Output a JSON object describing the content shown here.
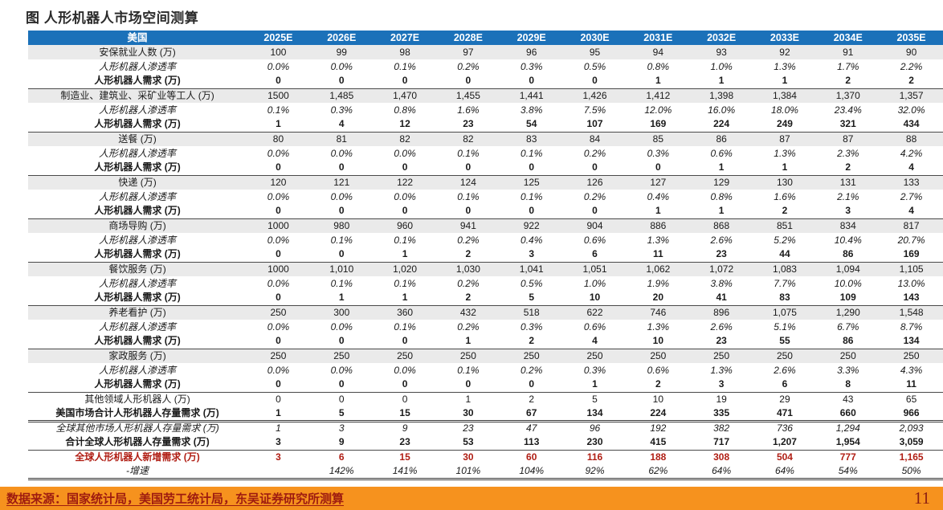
{
  "title": "图  人形机器人市场空间测算",
  "table": {
    "label_header": "美国",
    "years": [
      "2025E",
      "2026E",
      "2027E",
      "2028E",
      "2029E",
      "2030E",
      "2031E",
      "2032E",
      "2033E",
      "2034E",
      "2035E"
    ],
    "rows": [
      {
        "label": "安保就业人数 (万)",
        "style": "sector",
        "values": [
          "100",
          "99",
          "98",
          "97",
          "96",
          "95",
          "94",
          "93",
          "92",
          "91",
          "90"
        ]
      },
      {
        "label": "人形机器人渗透率",
        "style": "pen",
        "values": [
          "0.0%",
          "0.0%",
          "0.1%",
          "0.2%",
          "0.3%",
          "0.5%",
          "0.8%",
          "1.0%",
          "1.3%",
          "1.7%",
          "2.2%"
        ]
      },
      {
        "label": "人形机器人需求 (万)",
        "style": "demand",
        "values": [
          "0",
          "0",
          "0",
          "0",
          "0",
          "0",
          "1",
          "1",
          "1",
          "2",
          "2"
        ]
      },
      {
        "label": "制造业、建筑业、采矿业等工人 (万)",
        "style": "sector",
        "values": [
          "1500",
          "1,485",
          "1,470",
          "1,455",
          "1,441",
          "1,426",
          "1,412",
          "1,398",
          "1,384",
          "1,370",
          "1,357"
        ]
      },
      {
        "label": "人形机器人渗透率",
        "style": "pen",
        "values": [
          "0.1%",
          "0.3%",
          "0.8%",
          "1.6%",
          "3.8%",
          "7.5%",
          "12.0%",
          "16.0%",
          "18.0%",
          "23.4%",
          "32.0%"
        ]
      },
      {
        "label": "人形机器人需求 (万)",
        "style": "demand",
        "values": [
          "1",
          "4",
          "12",
          "23",
          "54",
          "107",
          "169",
          "224",
          "249",
          "321",
          "434"
        ]
      },
      {
        "label": "送餐 (万)",
        "style": "sector",
        "values": [
          "80",
          "81",
          "82",
          "82",
          "83",
          "84",
          "85",
          "86",
          "87",
          "87",
          "88"
        ]
      },
      {
        "label": "人形机器人渗透率",
        "style": "pen",
        "values": [
          "0.0%",
          "0.0%",
          "0.0%",
          "0.1%",
          "0.1%",
          "0.2%",
          "0.3%",
          "0.6%",
          "1.3%",
          "2.3%",
          "4.2%"
        ]
      },
      {
        "label": "人形机器人需求 (万)",
        "style": "demand",
        "values": [
          "0",
          "0",
          "0",
          "0",
          "0",
          "0",
          "0",
          "1",
          "1",
          "2",
          "4"
        ]
      },
      {
        "label": "快递 (万)",
        "style": "sector",
        "values": [
          "120",
          "121",
          "122",
          "124",
          "125",
          "126",
          "127",
          "129",
          "130",
          "131",
          "133"
        ]
      },
      {
        "label": "人形机器人渗透率",
        "style": "pen",
        "values": [
          "0.0%",
          "0.0%",
          "0.0%",
          "0.1%",
          "0.1%",
          "0.2%",
          "0.4%",
          "0.8%",
          "1.6%",
          "2.1%",
          "2.7%"
        ]
      },
      {
        "label": "人形机器人需求 (万)",
        "style": "demand",
        "values": [
          "0",
          "0",
          "0",
          "0",
          "0",
          "0",
          "1",
          "1",
          "2",
          "3",
          "4"
        ]
      },
      {
        "label": "商场导购 (万)",
        "style": "sector",
        "values": [
          "1000",
          "980",
          "960",
          "941",
          "922",
          "904",
          "886",
          "868",
          "851",
          "834",
          "817"
        ]
      },
      {
        "label": "人形机器人渗透率",
        "style": "pen",
        "values": [
          "0.0%",
          "0.1%",
          "0.1%",
          "0.2%",
          "0.4%",
          "0.6%",
          "1.3%",
          "2.6%",
          "5.2%",
          "10.4%",
          "20.7%"
        ]
      },
      {
        "label": "人形机器人需求 (万)",
        "style": "demand",
        "values": [
          "0",
          "0",
          "1",
          "2",
          "3",
          "6",
          "11",
          "23",
          "44",
          "86",
          "169"
        ]
      },
      {
        "label": "餐饮服务 (万)",
        "style": "sector",
        "values": [
          "1000",
          "1,010",
          "1,020",
          "1,030",
          "1,041",
          "1,051",
          "1,062",
          "1,072",
          "1,083",
          "1,094",
          "1,105"
        ]
      },
      {
        "label": "人形机器人渗透率",
        "style": "pen",
        "values": [
          "0.0%",
          "0.1%",
          "0.1%",
          "0.2%",
          "0.5%",
          "1.0%",
          "1.9%",
          "3.8%",
          "7.7%",
          "10.0%",
          "13.0%"
        ]
      },
      {
        "label": "人形机器人需求 (万)",
        "style": "demand",
        "values": [
          "0",
          "1",
          "1",
          "2",
          "5",
          "10",
          "20",
          "41",
          "83",
          "109",
          "143"
        ]
      },
      {
        "label": "养老看护 (万)",
        "style": "sector",
        "values": [
          "250",
          "300",
          "360",
          "432",
          "518",
          "622",
          "746",
          "896",
          "1,075",
          "1,290",
          "1,548"
        ]
      },
      {
        "label": "人形机器人渗透率",
        "style": "pen",
        "values": [
          "0.0%",
          "0.0%",
          "0.1%",
          "0.2%",
          "0.3%",
          "0.6%",
          "1.3%",
          "2.6%",
          "5.1%",
          "6.7%",
          "8.7%"
        ]
      },
      {
        "label": "人形机器人需求 (万)",
        "style": "demand",
        "values": [
          "0",
          "0",
          "0",
          "1",
          "2",
          "4",
          "10",
          "23",
          "55",
          "86",
          "134"
        ]
      },
      {
        "label": "家政服务 (万)",
        "style": "sector",
        "values": [
          "250",
          "250",
          "250",
          "250",
          "250",
          "250",
          "250",
          "250",
          "250",
          "250",
          "250"
        ]
      },
      {
        "label": "人形机器人渗透率",
        "style": "pen",
        "values": [
          "0.0%",
          "0.0%",
          "0.0%",
          "0.1%",
          "0.2%",
          "0.3%",
          "0.6%",
          "1.3%",
          "2.6%",
          "3.3%",
          "4.3%"
        ]
      },
      {
        "label": "人形机器人需求 (万)",
        "style": "demand",
        "values": [
          "0",
          "0",
          "0",
          "0",
          "0",
          "1",
          "2",
          "3",
          "6",
          "8",
          "11"
        ]
      },
      {
        "label": "其他领域人形机器人 (万)",
        "style": "plain",
        "values": [
          "0",
          "0",
          "0",
          "1",
          "2",
          "5",
          "10",
          "19",
          "29",
          "43",
          "65"
        ]
      },
      {
        "label": "美国市场合计人形机器人存量需求 (万)",
        "style": "us-total",
        "values": [
          "1",
          "5",
          "15",
          "30",
          "67",
          "134",
          "224",
          "335",
          "471",
          "660",
          "966"
        ]
      },
      {
        "label": "全球其他市场人形机器人存量需求 (万)",
        "style": "global-other",
        "values": [
          "1",
          "3",
          "9",
          "23",
          "47",
          "96",
          "192",
          "382",
          "736",
          "1,294",
          "2,093"
        ]
      },
      {
        "label": "合计全球人形机器人存量需求 (万)",
        "style": "global-total",
        "values": [
          "3",
          "9",
          "23",
          "53",
          "113",
          "230",
          "415",
          "717",
          "1,207",
          "1,954",
          "3,059"
        ]
      },
      {
        "label": "全球人形机器人新增需求 (万)",
        "style": "red",
        "values": [
          "3",
          "6",
          "15",
          "30",
          "60",
          "116",
          "188",
          "308",
          "504",
          "777",
          "1,165"
        ]
      },
      {
        "label": "-增速",
        "style": "growth",
        "values": [
          "",
          "142%",
          "141%",
          "101%",
          "104%",
          "92%",
          "62%",
          "64%",
          "64%",
          "54%",
          "50%"
        ]
      }
    ]
  },
  "colors": {
    "header_blue": "#1b71b9",
    "stripe_gray": "#eaeaea",
    "footer_orange": "#f6921e",
    "footer_text_red": "#9e1b10",
    "highlight_red": "#b01e14"
  },
  "footer": {
    "source": "数据来源：国家统计局，美国劳工统计局，东吴证券研究所测算",
    "page_number": "11"
  }
}
